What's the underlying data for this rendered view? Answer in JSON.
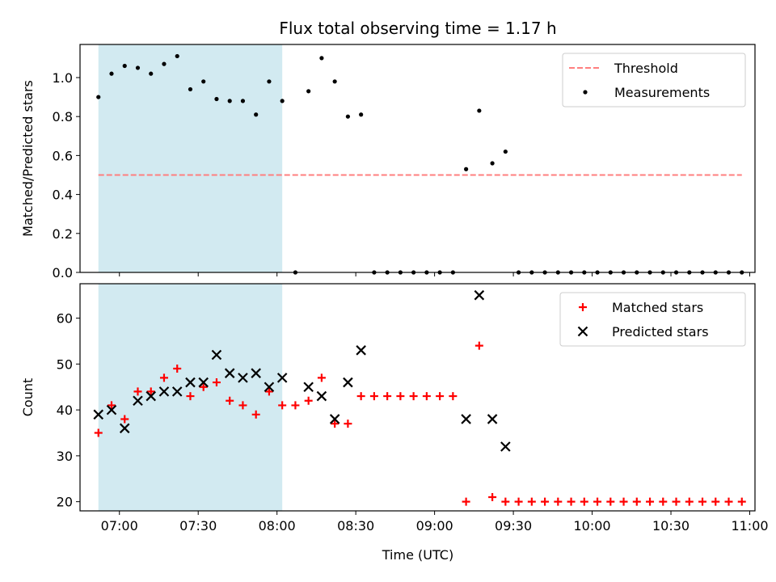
{
  "title": "Flux total observing time = 1.17 h",
  "xlabel": "Time (UTC)",
  "colors": {
    "threshold": "#ff7f7f",
    "shade": "#add8e6",
    "matched": "#ff0000",
    "predicted": "#000000",
    "measurements": "#000000"
  },
  "chart_data": [
    {
      "type": "scatter",
      "ylabel": "Matched/Predicted stars",
      "xlim": [
        "06:45",
        "11:02"
      ],
      "ylim": [
        0,
        1.17
      ],
      "xticks": [
        "07:00",
        "07:30",
        "08:00",
        "08:30",
        "09:00",
        "09:30",
        "10:00",
        "10:30",
        "11:00"
      ],
      "yticks": [
        "0.0",
        "0.2",
        "0.4",
        "0.6",
        "0.8",
        "1.0"
      ],
      "shaded_interval": [
        "06:52",
        "08:02"
      ],
      "grid": false,
      "legend": "top-right",
      "series": [
        {
          "name": "Threshold",
          "kind": "dashed-line",
          "x": [
            "06:52",
            "10:57"
          ],
          "y": [
            0.5,
            0.5
          ]
        },
        {
          "name": "Measurements",
          "kind": "dot",
          "x": [
            "06:52",
            "06:57",
            "07:02",
            "07:07",
            "07:12",
            "07:17",
            "07:22",
            "07:27",
            "07:32",
            "07:37",
            "07:42",
            "07:47",
            "07:52",
            "07:57",
            "08:02",
            "08:07",
            "08:12",
            "08:17",
            "08:22",
            "08:27",
            "08:32",
            "08:37",
            "08:42",
            "08:47",
            "08:52",
            "08:57",
            "09:02",
            "09:07",
            "09:12",
            "09:17",
            "09:22",
            "09:27",
            "09:32",
            "09:37",
            "09:42",
            "09:47",
            "09:52",
            "09:57",
            "10:02",
            "10:07",
            "10:12",
            "10:17",
            "10:22",
            "10:27",
            "10:32",
            "10:37",
            "10:42",
            "10:47",
            "10:52",
            "10:57"
          ],
          "y": [
            0.9,
            1.02,
            1.06,
            1.05,
            1.02,
            1.07,
            1.11,
            0.94,
            0.98,
            0.89,
            0.88,
            0.88,
            0.81,
            0.98,
            0.88,
            0.0,
            0.93,
            1.1,
            0.98,
            0.8,
            0.81,
            0.0,
            0.0,
            0.0,
            0.0,
            0.0,
            0.0,
            0.0,
            0.53,
            0.83,
            0.56,
            0.62,
            0.0,
            0.0,
            0.0,
            0.0,
            0.0,
            0.0,
            0.0,
            0.0,
            0.0,
            0.0,
            0.0,
            0.0,
            0.0,
            0.0,
            0.0,
            0.0,
            0.0,
            0.0
          ]
        }
      ]
    },
    {
      "type": "scatter",
      "ylabel": "Count",
      "xlim": [
        "06:45",
        "11:02"
      ],
      "ylim": [
        18,
        67.5
      ],
      "xticks": [
        "07:00",
        "07:30",
        "08:00",
        "08:30",
        "09:00",
        "09:30",
        "10:00",
        "10:30",
        "11:00"
      ],
      "yticks": [
        "20",
        "30",
        "40",
        "50",
        "60"
      ],
      "shaded_interval": [
        "06:52",
        "08:02"
      ],
      "grid": false,
      "legend": "top-right",
      "series": [
        {
          "name": "Matched stars",
          "kind": "plus",
          "x": [
            "06:52",
            "06:57",
            "07:02",
            "07:07",
            "07:12",
            "07:17",
            "07:22",
            "07:27",
            "07:32",
            "07:37",
            "07:42",
            "07:47",
            "07:52",
            "07:57",
            "08:02",
            "08:07",
            "08:12",
            "08:17",
            "08:22",
            "08:27",
            "08:32",
            "08:37",
            "08:42",
            "08:47",
            "08:52",
            "08:57",
            "09:02",
            "09:07",
            "09:12",
            "09:17",
            "09:22",
            "09:27",
            "09:32",
            "09:37",
            "09:42",
            "09:47",
            "09:52",
            "09:57",
            "10:02",
            "10:07",
            "10:12",
            "10:17",
            "10:22",
            "10:27",
            "10:32",
            "10:37",
            "10:42",
            "10:47",
            "10:52",
            "10:57"
          ],
          "y": [
            35,
            41,
            38,
            44,
            44,
            47,
            49,
            43,
            45,
            46,
            42,
            41,
            39,
            44,
            41,
            41,
            42,
            47,
            37,
            37,
            43,
            43,
            43,
            43,
            43,
            43,
            43,
            43,
            20,
            54,
            21,
            20,
            20,
            20,
            20,
            20,
            20,
            20,
            20,
            20,
            20,
            20,
            20,
            20,
            20,
            20,
            20,
            20,
            20,
            20
          ]
        },
        {
          "name": "Predicted stars",
          "kind": "x",
          "x": [
            "06:52",
            "06:57",
            "07:02",
            "07:07",
            "07:12",
            "07:17",
            "07:22",
            "07:27",
            "07:32",
            "07:37",
            "07:42",
            "07:47",
            "07:52",
            "07:57",
            "08:02",
            "08:12",
            "08:17",
            "08:22",
            "08:27",
            "08:32",
            "09:12",
            "09:17",
            "09:22",
            "09:27"
          ],
          "y": [
            39,
            40,
            36,
            42,
            43,
            44,
            44,
            46,
            46,
            52,
            48,
            47,
            48,
            45,
            47,
            45,
            43,
            38,
            46,
            53,
            38,
            65,
            38,
            32
          ]
        }
      ]
    }
  ]
}
